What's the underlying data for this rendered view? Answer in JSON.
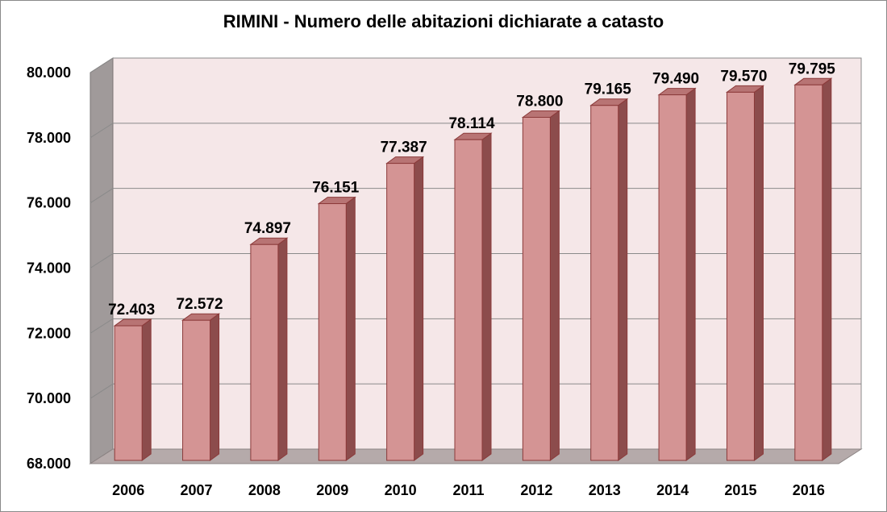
{
  "chart_data": {
    "type": "bar",
    "title": "RIMINI - Numero delle abitazioni dichiarate a catasto",
    "categories": [
      "2006",
      "2007",
      "2008",
      "2009",
      "2010",
      "2011",
      "2012",
      "2013",
      "2014",
      "2015",
      "2016"
    ],
    "values": [
      72403,
      72572,
      74897,
      76151,
      77387,
      78114,
      78800,
      79165,
      79490,
      79570,
      79795
    ],
    "value_labels": [
      "72.403",
      "72.572",
      "74.897",
      "76.151",
      "77.387",
      "78.114",
      "78.800",
      "79.165",
      "79.490",
      "79.570",
      "79.795"
    ],
    "ylim": [
      68000,
      80000
    ],
    "yticks": [
      68000,
      70000,
      72000,
      74000,
      76000,
      78000,
      80000
    ],
    "ytick_labels": [
      "68.000",
      "70.000",
      "72.000",
      "74.000",
      "76.000",
      "78.000",
      "80.000"
    ],
    "xlabel": "",
    "ylabel": "",
    "grid": true,
    "style": "3d-column",
    "colors": {
      "bar_front": "#d49494",
      "bar_side": "#8c4c4c",
      "bar_top": "#b87474",
      "bar_edge": "#8b3a3a",
      "back_wall": "#f5e7e8",
      "side_wall": "#a09a9a",
      "floor": "#b5aaaa",
      "gridline": "#8a8a8a"
    }
  }
}
